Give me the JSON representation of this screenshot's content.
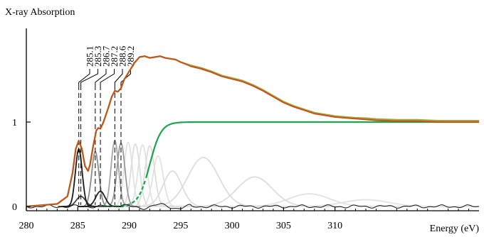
{
  "chart_data": {
    "type": "line",
    "ylabel": "X-ray Absorption",
    "xlabel": "Energy (eV)",
    "xlim": [
      280,
      324
    ],
    "ylim": [
      -0.04,
      2.0
    ],
    "x_ticks": [
      {
        "value": 280,
        "label": "280"
      },
      {
        "value": 285,
        "label": "285"
      },
      {
        "value": 290,
        "label": "290"
      },
      {
        "value": 295,
        "label": "295"
      },
      {
        "value": 300,
        "label": "300"
      },
      {
        "value": 305,
        "label": "305"
      },
      {
        "value": 310,
        "label": "310"
      }
    ],
    "y_ticks": [
      {
        "value": 0,
        "label": "0"
      },
      {
        "value": 1,
        "label": "1"
      }
    ],
    "peak_markers": [
      {
        "x": 285.1,
        "label": "285.1"
      },
      {
        "x": 285.3,
        "label": "285.3"
      },
      {
        "x": 286.7,
        "label": "286.7"
      },
      {
        "x": 287.2,
        "label": "287.2"
      },
      {
        "x": 288.6,
        "label": "288.6"
      },
      {
        "x": 289.2,
        "label": "289.2"
      }
    ],
    "step_edge": {
      "center": 292.0,
      "width": 0.55,
      "height": 1.0,
      "color": "#1aa64a"
    },
    "components": [
      {
        "center": 285.1,
        "amplitude": 0.68,
        "sigma": 0.33,
        "color": "#1a1a1a"
      },
      {
        "center": 285.3,
        "amplitude": 0.12,
        "sigma": 0.45,
        "color": "#444444"
      },
      {
        "center": 286.7,
        "amplitude": 0.65,
        "sigma": 0.35,
        "color": "#8a8a8a"
      },
      {
        "center": 287.2,
        "amplitude": 0.18,
        "sigma": 0.45,
        "color": "#222222"
      },
      {
        "center": 288.6,
        "amplitude": 0.78,
        "sigma": 0.36,
        "color": "#a6a6a6"
      },
      {
        "center": 289.2,
        "amplitude": 0.75,
        "sigma": 0.38,
        "color": "#9a9a9a"
      },
      {
        "center": 289.9,
        "amplitude": 0.76,
        "sigma": 0.4,
        "color": "#e2e2e2"
      },
      {
        "center": 290.6,
        "amplitude": 0.74,
        "sigma": 0.42,
        "color": "#dddddd"
      },
      {
        "center": 291.3,
        "amplitude": 0.73,
        "sigma": 0.44,
        "color": "#e2e2e2"
      },
      {
        "center": 292.0,
        "amplitude": 0.72,
        "sigma": 0.46,
        "color": "#dddddd"
      },
      {
        "center": 292.8,
        "amplitude": 0.6,
        "sigma": 0.5,
        "color": "#e2e2e2"
      },
      {
        "center": 294.2,
        "amplitude": 0.42,
        "sigma": 0.9,
        "color": "#dddddd"
      },
      {
        "center": 297.2,
        "amplitude": 0.58,
        "sigma": 1.5,
        "color": "#dddddd"
      },
      {
        "center": 302.2,
        "amplitude": 0.35,
        "sigma": 1.7,
        "color": "#dddddd"
      },
      {
        "center": 307.5,
        "amplitude": 0.15,
        "sigma": 2.0,
        "color": "#e2e2e2"
      },
      {
        "center": 313.0,
        "amplitude": 0.08,
        "sigma": 2.2,
        "color": "#e2e2e2"
      }
    ],
    "fit_color": "#9aab3a",
    "data_color": "#c8501e",
    "residual_color": "#111111",
    "data_curve": {
      "x": [
        280,
        283,
        284,
        284.5,
        284.8,
        285.1,
        285.4,
        285.7,
        286.0,
        286.2,
        286.5,
        286.8,
        287.0,
        287.2,
        287.5,
        288.0,
        288.3,
        288.6,
        288.9,
        289.2,
        289.5,
        290.0,
        290.5,
        291.0,
        291.5,
        292.0,
        292.5,
        293.0,
        293.5,
        294.0,
        294.5,
        295.0,
        296.0,
        297.0,
        298.0,
        299.0,
        300.0,
        301.0,
        302.0,
        303.0,
        304.0,
        305.0,
        306.0,
        307.0,
        308.0,
        309.0,
        310.0,
        311.0,
        312.0,
        313.0,
        314.0,
        316.0,
        318.0,
        320.0,
        322.0,
        324.0
      ],
      "y": [
        0.0,
        0.03,
        0.12,
        0.4,
        0.68,
        0.78,
        0.68,
        0.48,
        0.42,
        0.5,
        0.72,
        0.9,
        0.93,
        0.92,
        1.0,
        1.18,
        1.3,
        1.37,
        1.36,
        1.4,
        1.5,
        1.6,
        1.7,
        1.77,
        1.78,
        1.76,
        1.77,
        1.78,
        1.76,
        1.75,
        1.74,
        1.71,
        1.66,
        1.63,
        1.59,
        1.54,
        1.51,
        1.48,
        1.43,
        1.37,
        1.3,
        1.23,
        1.18,
        1.14,
        1.1,
        1.08,
        1.06,
        1.05,
        1.04,
        1.03,
        1.02,
        1.01,
        1.01,
        1.0,
        1.0,
        1.0
      ]
    }
  }
}
